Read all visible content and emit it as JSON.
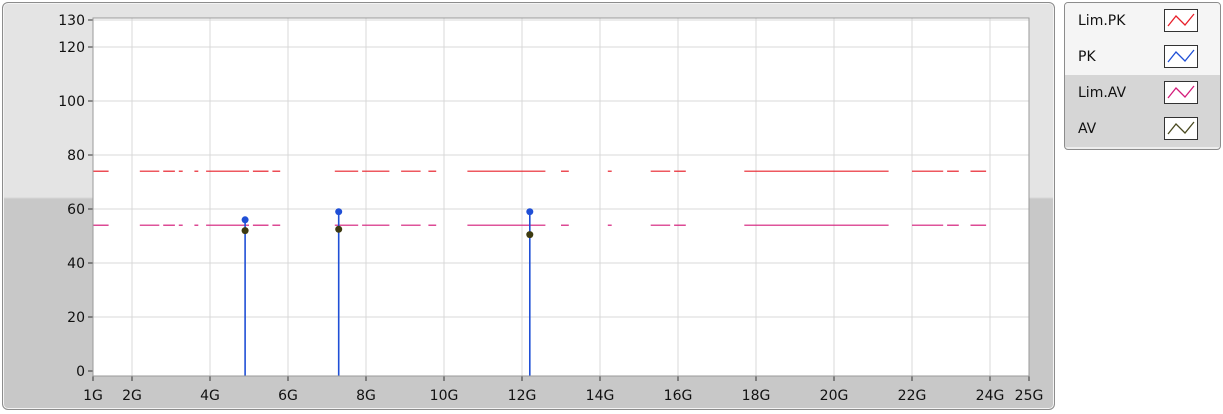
{
  "chart_data": {
    "type": "line",
    "x_tick_labels": [
      "1G",
      "2G",
      "4G",
      "6G",
      "8G",
      "10G",
      "12G",
      "14G",
      "16G",
      "18G",
      "20G",
      "22G",
      "24G",
      "25G"
    ],
    "x_ticks": [
      1,
      2,
      4,
      6,
      8,
      10,
      12,
      14,
      16,
      18,
      20,
      22,
      24,
      25
    ],
    "y_tick_labels": [
      "0",
      "20",
      "40",
      "60",
      "80",
      "100",
      "120",
      "130"
    ],
    "y_ticks": [
      0,
      20,
      40,
      60,
      80,
      100,
      120,
      130
    ],
    "xlim": [
      1,
      25
    ],
    "ylim": [
      0,
      130
    ],
    "grid": true,
    "legend_placement": "right",
    "series": [
      {
        "name": "Lim.PK",
        "color": "#e8202a",
        "style": "segments",
        "level": 74,
        "segments": [
          [
            1,
            1.4
          ],
          [
            2.2,
            2.7
          ],
          [
            2.8,
            3.1
          ],
          [
            3.2,
            3.3
          ],
          [
            3.6,
            3.7
          ],
          [
            3.9,
            5.0
          ],
          [
            5.1,
            5.5
          ],
          [
            5.6,
            5.8
          ],
          [
            7.2,
            7.8
          ],
          [
            7.9,
            8.6
          ],
          [
            8.9,
            9.4
          ],
          [
            9.6,
            9.8
          ],
          [
            10.6,
            12.6
          ],
          [
            13.0,
            13.2
          ],
          [
            14.2,
            14.3
          ],
          [
            15.3,
            15.8
          ],
          [
            15.9,
            16.2
          ],
          [
            17.7,
            21.4
          ],
          [
            22.0,
            22.8
          ],
          [
            22.9,
            23.2
          ],
          [
            23.5,
            23.9
          ]
        ]
      },
      {
        "name": "PK",
        "color": "#1f4fd6",
        "style": "stems",
        "x": [
          4.9,
          7.3,
          12.2
        ],
        "values": [
          56,
          59,
          59
        ]
      },
      {
        "name": "Lim.AV",
        "color": "#d41c7a",
        "style": "segments",
        "level": 54,
        "segments": [
          [
            1,
            1.4
          ],
          [
            2.2,
            2.7
          ],
          [
            2.8,
            3.1
          ],
          [
            3.2,
            3.3
          ],
          [
            3.6,
            3.7
          ],
          [
            3.9,
            5.0
          ],
          [
            5.1,
            5.5
          ],
          [
            5.6,
            5.8
          ],
          [
            7.2,
            7.8
          ],
          [
            7.9,
            8.6
          ],
          [
            8.9,
            9.4
          ],
          [
            9.6,
            9.8
          ],
          [
            10.6,
            12.6
          ],
          [
            13.0,
            13.2
          ],
          [
            14.2,
            14.3
          ],
          [
            15.3,
            15.8
          ],
          [
            15.9,
            16.2
          ],
          [
            17.7,
            21.4
          ],
          [
            22.0,
            22.8
          ],
          [
            22.9,
            23.2
          ],
          [
            23.5,
            23.9
          ]
        ]
      },
      {
        "name": "AV",
        "color": "#3d3a10",
        "style": "points",
        "x": [
          4.9,
          7.3,
          12.2
        ],
        "values": [
          52,
          52.5,
          50.5
        ]
      }
    ]
  },
  "legend": {
    "items": [
      {
        "label": "Lim.PK",
        "color": "#e8202a"
      },
      {
        "label": "PK",
        "color": "#1f4fd6"
      },
      {
        "label": "Lim.AV",
        "color": "#d41c7a"
      },
      {
        "label": "AV",
        "color": "#4a4a20"
      }
    ]
  },
  "colors": {
    "frame_light": "#e4e4e4",
    "frame_dark": "#c8c8c8",
    "plot_background": "#ffffff",
    "gridline": "#d9d9d9"
  }
}
